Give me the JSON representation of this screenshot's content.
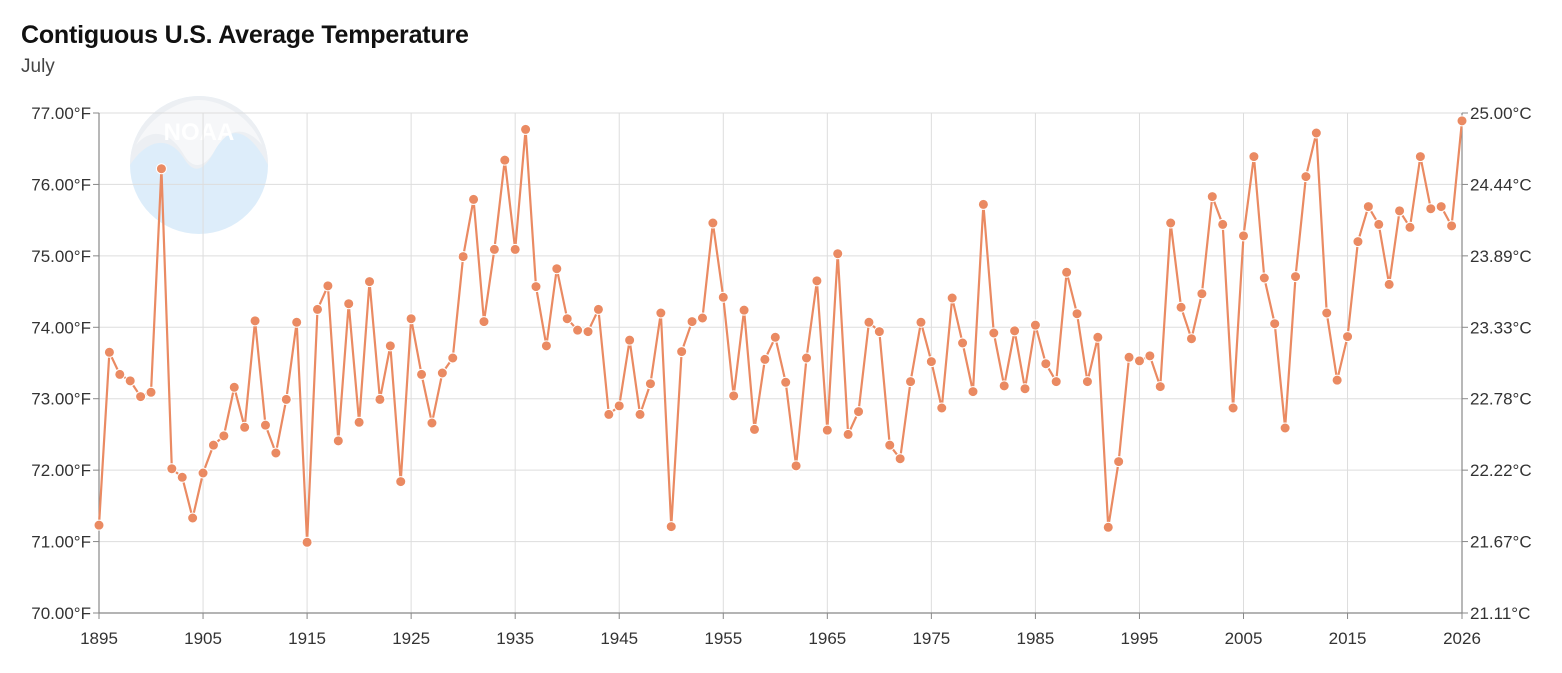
{
  "header": {
    "title": "Contiguous U.S. Average Temperature",
    "subtitle": "July"
  },
  "watermark": {
    "text": "NOAA",
    "icon": "noaa-logo"
  },
  "colors": {
    "series": "#ea8a62",
    "grid": "#dddddd",
    "axis": "#888888",
    "text": "#333333"
  },
  "chart_data": {
    "type": "line",
    "title": "Contiguous U.S. Average Temperature",
    "subtitle": "July",
    "xlim": [
      1895,
      2026
    ],
    "ylim": [
      70,
      77
    ],
    "y_ticks": [
      "70.00°F",
      "71.00°F",
      "72.00°F",
      "73.00°F",
      "74.00°F",
      "75.00°F",
      "76.00°F",
      "77.00°F"
    ],
    "y2_ticks": [
      "21.11°C",
      "21.67°C",
      "22.22°C",
      "22.78°C",
      "23.33°C",
      "23.89°C",
      "24.44°C",
      "25.00°C"
    ],
    "x_ticks": [
      "1895",
      "1905",
      "1915",
      "1925",
      "1935",
      "1945",
      "1955",
      "1965",
      "1975",
      "1985",
      "1995",
      "2005",
      "2015",
      "2026"
    ],
    "grid": true,
    "series": [
      {
        "x": [
          1895,
          1896,
          1897,
          1898,
          1899,
          1900,
          1901,
          1902,
          1903,
          1904,
          1905,
          1906,
          1907,
          1908,
          1909,
          1910,
          1911,
          1912,
          1913,
          1914,
          1915,
          1916,
          1917,
          1918,
          1919,
          1920,
          1921,
          1922,
          1923,
          1924,
          1925,
          1926,
          1927,
          1928,
          1929,
          1930,
          1931,
          1932,
          1933,
          1934,
          1935,
          1936,
          1937,
          1938,
          1939,
          1940,
          1941,
          1942,
          1943,
          1944,
          1945,
          1946,
          1947,
          1948,
          1949,
          1950,
          1951,
          1952,
          1953,
          1954,
          1955,
          1956,
          1957,
          1958,
          1959,
          1960,
          1961,
          1962,
          1963,
          1964,
          1965,
          1966,
          1967,
          1968,
          1969,
          1970,
          1971,
          1972,
          1973,
          1974,
          1975,
          1976,
          1977,
          1978,
          1979,
          1980,
          1981,
          1982,
          1983,
          1984,
          1985,
          1986,
          1987,
          1988,
          1989,
          1990,
          1991,
          1992,
          1993,
          1994,
          1995,
          1996,
          1997,
          1998,
          1999,
          2000,
          2001,
          2002,
          2003,
          2004,
          2005,
          2006,
          2007,
          2008,
          2009,
          2010,
          2011,
          2012,
          2013,
          2014,
          2015,
          2016,
          2017,
          2018,
          2019,
          2020,
          2021,
          2022,
          2023,
          2024,
          2025,
          2026
        ],
        "values": [
          71.23,
          73.65,
          73.34,
          73.25,
          73.03,
          73.09,
          76.22,
          72.02,
          71.9,
          71.33,
          71.96,
          72.35,
          72.48,
          73.16,
          72.6,
          74.09,
          72.63,
          72.24,
          72.99,
          74.07,
          70.99,
          74.25,
          74.58,
          72.41,
          74.33,
          72.67,
          74.64,
          72.99,
          73.74,
          71.84,
          74.12,
          73.34,
          72.66,
          73.36,
          73.57,
          74.99,
          75.79,
          74.08,
          75.09,
          76.34,
          75.09,
          76.77,
          74.57,
          73.74,
          74.82,
          74.12,
          73.96,
          73.94,
          74.25,
          72.78,
          72.9,
          73.82,
          72.78,
          73.21,
          74.2,
          71.21,
          73.66,
          74.08,
          74.13,
          75.46,
          74.42,
          73.04,
          74.24,
          72.57,
          73.55,
          73.86,
          73.23,
          72.06,
          73.57,
          74.65,
          72.56,
          75.03,
          72.5,
          72.82,
          74.07,
          73.94,
          72.35,
          72.16,
          73.24,
          74.07,
          73.52,
          72.87,
          74.41,
          73.78,
          73.1,
          75.72,
          73.92,
          73.18,
          73.95,
          73.14,
          74.03,
          73.49,
          73.24,
          74.77,
          74.19,
          73.24,
          73.86,
          71.2,
          72.12,
          73.58,
          73.53,
          73.6,
          73.17,
          75.46,
          74.28,
          73.84,
          74.47,
          75.83,
          75.44,
          72.87,
          75.28,
          76.39,
          74.69,
          74.05,
          72.59,
          74.71,
          76.11,
          76.72,
          74.2,
          73.26,
          73.87,
          75.2,
          75.69,
          75.44,
          74.6,
          75.63,
          75.4,
          76.39,
          75.66,
          75.69,
          75.42,
          76.89
        ]
      }
    ]
  }
}
